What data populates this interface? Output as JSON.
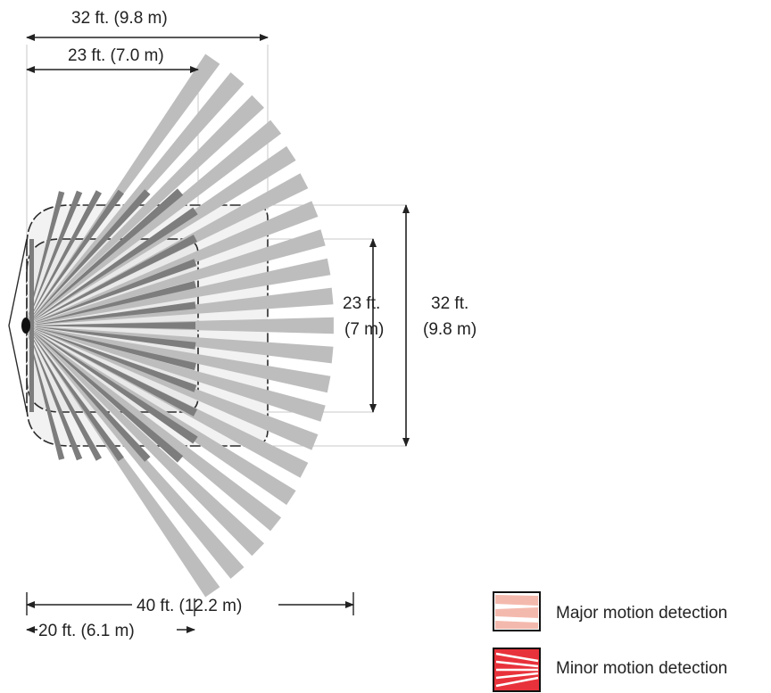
{
  "colors": {
    "beam_long": "#bdbdbd",
    "beam_short": "#7d7d7d",
    "zone_fill": "#f0f0f0",
    "zone_stroke": "#2b2b2b",
    "dimension_line": "#222222",
    "major_legend_fill": "#f4b9ad",
    "minor_legend_fill": "#e8323b"
  },
  "dimensions": {
    "top_outer": "32 ft. (9.8 m)",
    "top_inner": "23 ft. (7.0 m)",
    "right_inner_line1": "23 ft.",
    "right_inner_line2": "(7 m)",
    "right_outer_line1": "32 ft.",
    "right_outer_line2": "(9.8 m)",
    "bottom_outer": "40 ft. (12.2 m)",
    "bottom_inner": "20 ft. (6.1 m)"
  },
  "legend": {
    "major_label": "Major motion detection",
    "minor_label": "Minor motion detection"
  }
}
